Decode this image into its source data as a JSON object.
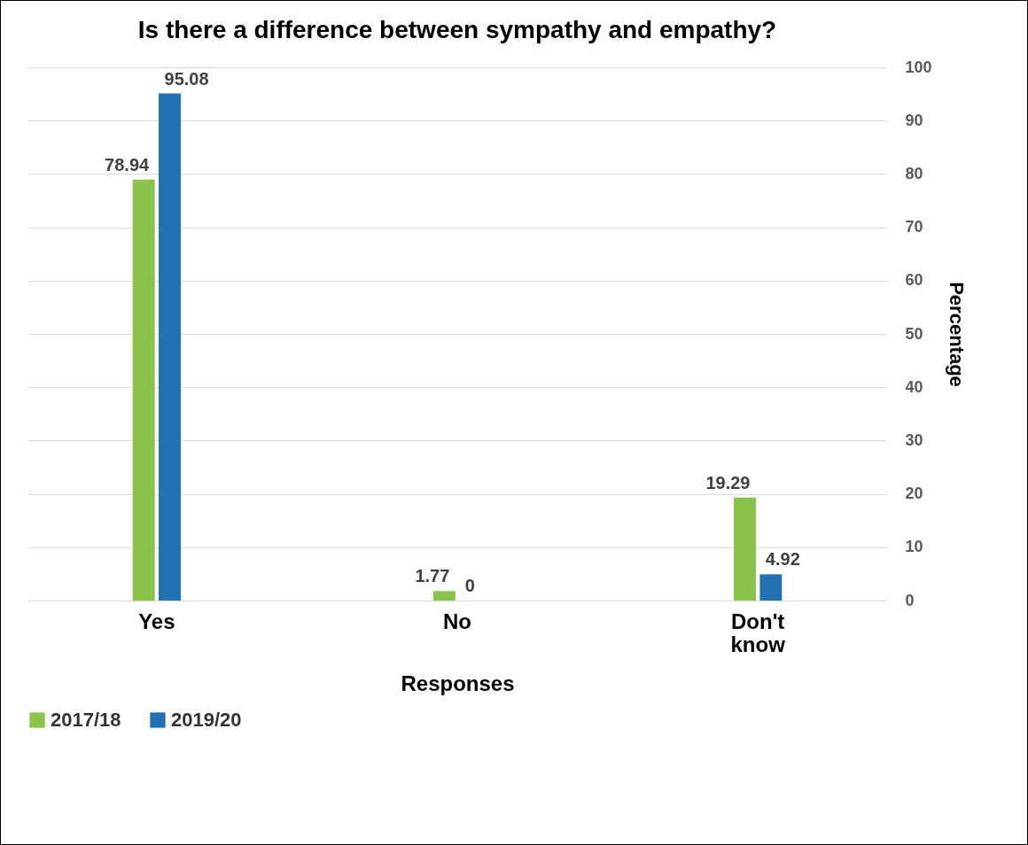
{
  "chart_data": {
    "type": "bar",
    "title": "Is there a difference between sympathy and empathy?",
    "xlabel": "Responses",
    "ylabel": "Percentage",
    "categories": [
      "Yes",
      "No",
      "Don't know"
    ],
    "series": [
      {
        "name": "2017/18",
        "color": "#8bc34a",
        "values": [
          78.94,
          1.77,
          19.29
        ]
      },
      {
        "name": "2019/20",
        "color": "#2271b3",
        "values": [
          95.08,
          0,
          4.92
        ]
      }
    ],
    "ylim": [
      0,
      100
    ],
    "yticks": [
      0,
      10,
      20,
      30,
      40,
      50,
      60,
      70,
      80,
      90,
      100
    ],
    "grid": "y",
    "legend": "bottom",
    "data_labels": true
  }
}
